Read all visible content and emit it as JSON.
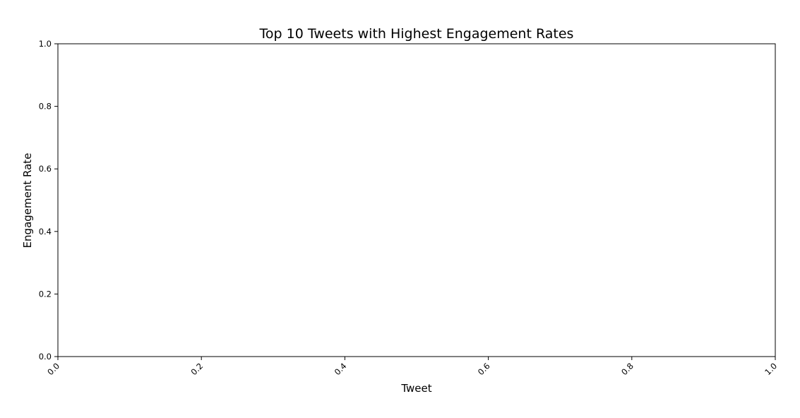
{
  "chart_data": {
    "type": "bar",
    "title": "Top 10 Tweets with Highest Engagement Rates",
    "xlabel": "Tweet",
    "ylabel": "Engagement Rate",
    "categories": [],
    "values": [],
    "xlim": [
      0.0,
      1.0
    ],
    "ylim": [
      0.0,
      1.0
    ],
    "x_ticks": [
      "0.0",
      "0.2",
      "0.4",
      "0.6",
      "0.8",
      "1.0"
    ],
    "y_ticks": [
      "0.0",
      "0.2",
      "0.4",
      "0.6",
      "0.8",
      "1.0"
    ],
    "x_tick_rotation_deg": 45,
    "grid": false,
    "legend": "none"
  },
  "colors": {
    "axes": "#000000",
    "background": "#ffffff"
  }
}
